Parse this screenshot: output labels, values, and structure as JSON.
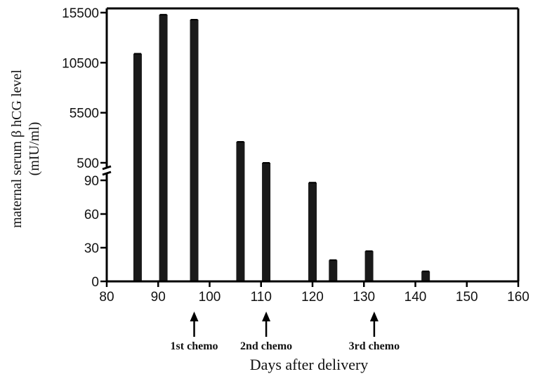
{
  "chart_data": {
    "type": "bar",
    "xlabel": "Days after delivery",
    "ylabel_line1": "maternal serum β hCG level",
    "ylabel_line2": "(mIU/ml)",
    "xlim": [
      80,
      160
    ],
    "x_ticks": [
      80,
      90,
      100,
      110,
      120,
      130,
      140,
      150,
      160
    ],
    "y_axis_broken": true,
    "y_lower_segment": {
      "range": [
        0,
        90
      ],
      "ticks": [
        0,
        30,
        60,
        90
      ]
    },
    "y_upper_segment": {
      "range": [
        500,
        15500
      ],
      "ticks": [
        500,
        5500,
        10500,
        15500
      ]
    },
    "bars": [
      {
        "x": 86,
        "value": 11400
      },
      {
        "x": 91,
        "value": 15300
      },
      {
        "x": 97,
        "value": 14800
      },
      {
        "x": 106,
        "value": 2600
      },
      {
        "x": 111,
        "value": 500
      },
      {
        "x": 120,
        "value": 88
      },
      {
        "x": 124,
        "value": 19
      },
      {
        "x": 131,
        "value": 27
      },
      {
        "x": 142,
        "value": 9
      }
    ],
    "annotations": [
      {
        "x": 97,
        "label": "1st chemo"
      },
      {
        "x": 111,
        "label": "2nd chemo"
      },
      {
        "x": 132,
        "label": "3rd chemo"
      }
    ],
    "grid": false,
    "legend": false,
    "bar_color": "#1a1a1a"
  }
}
